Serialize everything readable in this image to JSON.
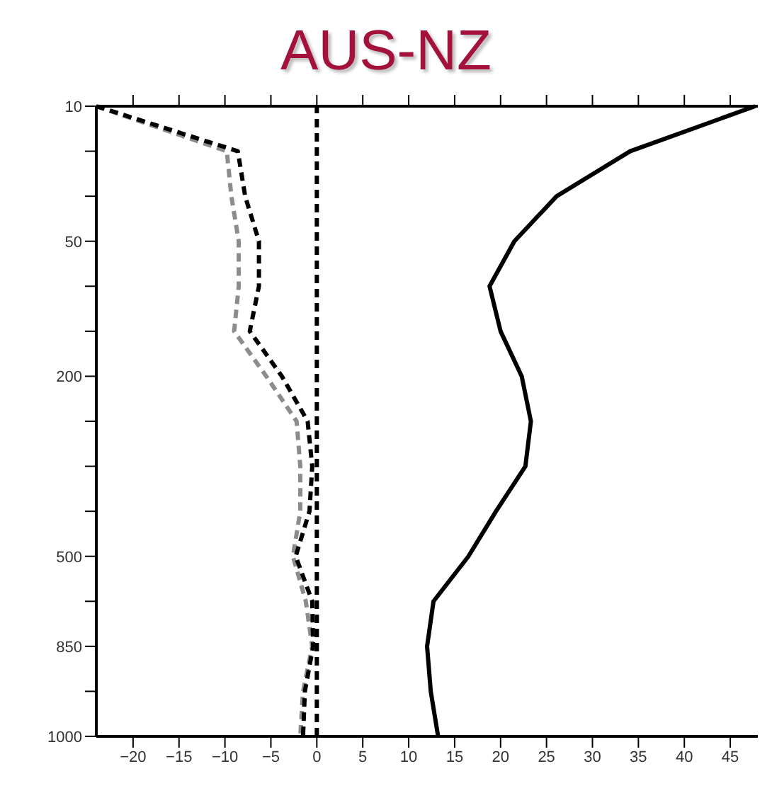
{
  "chart_data": {
    "type": "line",
    "title": "AUS-NZ",
    "orientation": "horizontal",
    "categories": [
      "10",
      null,
      null,
      "50",
      null,
      null,
      "200",
      null,
      null,
      null,
      "500",
      null,
      "850",
      null,
      "1000"
    ],
    "xlim": [
      -24,
      48
    ],
    "xticks": [
      -20,
      -15,
      -10,
      -5,
      0,
      5,
      10,
      15,
      20,
      25,
      30,
      35,
      40,
      45
    ],
    "grid": false,
    "legend": false,
    "marker": "none",
    "series": [
      {
        "color": "#8c8c8c",
        "line_style": "dashed",
        "values": [
          -24,
          -9.8,
          -9.3,
          -8.5,
          -8.5,
          -9,
          -5.5,
          -2.2,
          -1.8,
          -1.8,
          -2.6,
          -1.2,
          -0.5,
          -1.5,
          -1.8
        ]
      },
      {
        "color": "#000000",
        "line_style": "dashed",
        "values": [
          -24,
          -8.6,
          -7.8,
          -6.3,
          -6.3,
          -7.3,
          -3.8,
          -1,
          -0.5,
          -0.8,
          -2.3,
          -0.5,
          -0.4,
          -1.3,
          -1.5
        ]
      },
      {
        "color": "#000000",
        "line_style": "solid",
        "values": [
          47.7,
          34.1,
          26.1,
          21.5,
          18.8,
          20,
          22.3,
          23.3,
          22.7,
          19.5,
          16.5,
          12.7,
          12,
          12.4,
          13.2
        ]
      }
    ],
    "ref_lines": [
      {
        "axis": "x",
        "value": 0,
        "color": "#000000",
        "line_style": "dashed"
      }
    ]
  }
}
